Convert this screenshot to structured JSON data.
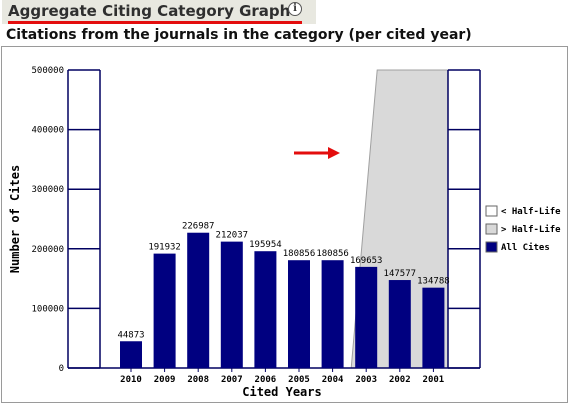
{
  "header": {
    "title": "Aggregate Citing Category Graph",
    "info_icon": "info-icon",
    "subtitle": "Citations from the journals in the category (per cited year)"
  },
  "colors": {
    "bar": "#000080",
    "half_life_shade": "#d9d9d9",
    "axis": "#000060",
    "title_underline": "#e30d0d",
    "annotation_arrow": "#e30d0d"
  },
  "chart_data": {
    "type": "bar",
    "title": "",
    "xlabel": "Cited Years",
    "ylabel": "Number of Cites",
    "categories": [
      "2010",
      "2009",
      "2008",
      "2007",
      "2006",
      "2005",
      "2004",
      "2003",
      "2002",
      "2001"
    ],
    "values": [
      44873,
      191932,
      226987,
      212037,
      195954,
      180856,
      180856,
      169653,
      147577,
      134788
    ],
    "data_labels": [
      "44873",
      "191932",
      "226987",
      "212037",
      "195954",
      "180856",
      "180856",
      "169653",
      "147577",
      "134788"
    ],
    "ylim": [
      0,
      500000
    ],
    "yticks": [
      0,
      100000,
      200000,
      300000,
      400000,
      500000
    ],
    "ytick_labels": [
      "0",
      "100000",
      "200000",
      "300000",
      "400000",
      "500000"
    ],
    "grid": false,
    "half_life_region": {
      "start_category": "2003",
      "shading": "> Half-Life"
    },
    "legend": {
      "placement": "right",
      "entries": [
        {
          "label": "< Half-Life",
          "color": "#ffffff"
        },
        {
          "label": "> Half-Life",
          "color": "#d9d9d9"
        },
        {
          "label": "All Cites",
          "color": "#000080"
        }
      ]
    }
  }
}
